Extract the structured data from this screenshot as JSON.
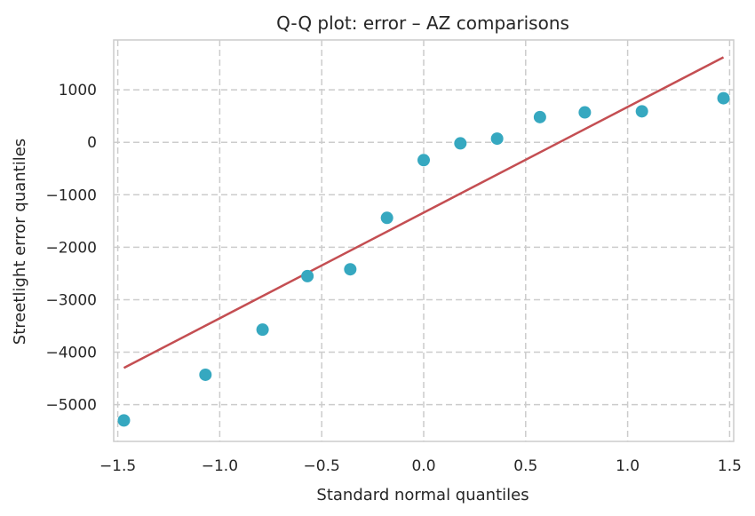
{
  "chart_data": {
    "type": "scatter",
    "title": "Q-Q plot: error – AZ comparisons",
    "xlabel": "Standard normal quantiles",
    "ylabel": "Streetlight error quantiles",
    "xlim": [
      -1.52,
      1.52
    ],
    "ylim": [
      -5700,
      1950
    ],
    "xticks": [
      -1.5,
      -1.0,
      -0.5,
      0.0,
      0.5,
      1.0,
      1.5
    ],
    "xtick_labels": [
      "−1.5",
      "−1.0",
      "−0.5",
      "0.0",
      "0.5",
      "1.0",
      "1.5"
    ],
    "yticks": [
      -5000,
      -4000,
      -3000,
      -2000,
      -1000,
      0,
      1000
    ],
    "ytick_labels": [
      "−5000",
      "−4000",
      "−3000",
      "−2000",
      "−1000",
      "0",
      "1000"
    ],
    "grid": true,
    "grid_style": "dashed",
    "points": {
      "color": "#36a8c0",
      "x": [
        -1.47,
        -1.07,
        -0.79,
        -0.57,
        -0.36,
        -0.18,
        0.0,
        0.18,
        0.36,
        0.57,
        0.79,
        1.07,
        1.47
      ],
      "y": [
        -5300,
        -4430,
        -3570,
        -2550,
        -2420,
        -1440,
        -340,
        -20,
        70,
        480,
        570,
        590,
        840
      ]
    },
    "fit_line": {
      "color": "#c44e52",
      "x": [
        -1.47,
        1.47
      ],
      "y": [
        -4300,
        1620
      ]
    }
  }
}
